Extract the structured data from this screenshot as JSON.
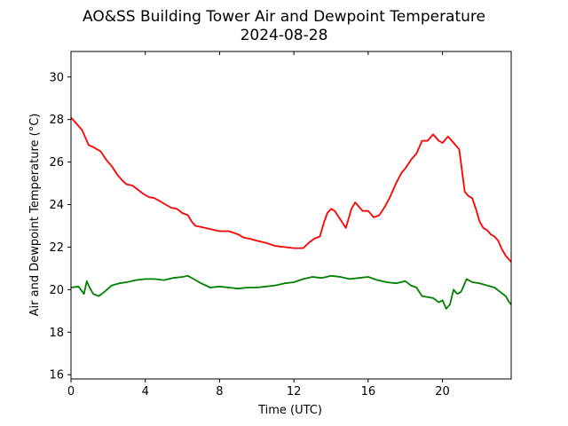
{
  "chart_data": {
    "type": "line",
    "title": "AO&SS Building Tower Air and Dewpoint Temperature",
    "subtitle": "2024-08-28",
    "xlabel": "Time (UTC)",
    "ylabel": "Air and Dewpoint Temperature (°C)",
    "xlim": [
      0,
      23.7
    ],
    "ylim": [
      15.8,
      31.2
    ],
    "xticks": [
      0,
      4,
      8,
      12,
      16,
      20
    ],
    "xtick_labels": [
      "0",
      "4",
      "8",
      "12",
      "16",
      "20"
    ],
    "yticks": [
      16,
      18,
      20,
      22,
      24,
      26,
      28,
      30
    ],
    "ytick_labels": [
      "16",
      "18",
      "20",
      "22",
      "24",
      "26",
      "28",
      "30"
    ],
    "grid": false,
    "legend": "none",
    "series": [
      {
        "color": "#ff0000",
        "x": [
          0,
          0.3,
          0.6,
          0.8,
          0.95,
          1.2,
          1.6,
          1.9,
          2.2,
          2.5,
          2.8,
          3.0,
          3.3,
          3.6,
          3.9,
          4.2,
          4.5,
          4.8,
          5.1,
          5.4,
          5.7,
          6.0,
          6.3,
          6.5,
          6.7,
          7.0,
          7.5,
          8.0,
          8.5,
          9.0,
          9.3,
          9.6,
          10.0,
          10.5,
          11.0,
          11.5,
          12.0,
          12.5,
          12.8,
          13.1,
          13.4,
          13.6,
          13.8,
          14.0,
          14.2,
          14.5,
          14.8,
          15.1,
          15.3,
          15.5,
          15.7,
          16.0,
          16.3,
          16.6,
          16.9,
          17.2,
          17.5,
          17.8,
          18.0,
          18.3,
          18.6,
          18.9,
          19.2,
          19.5,
          19.8,
          20.0,
          20.3,
          20.6,
          20.9,
          21.2,
          21.4,
          21.6,
          21.8,
          22.0,
          22.2,
          22.4,
          22.6,
          22.8,
          23.0,
          23.2,
          23.4,
          23.6,
          23.7
        ],
        "y": [
          28.1,
          27.8,
          27.5,
          27.1,
          26.8,
          26.7,
          26.5,
          26.1,
          25.8,
          25.4,
          25.1,
          24.95,
          24.9,
          24.7,
          24.5,
          24.35,
          24.3,
          24.15,
          24.0,
          23.85,
          23.8,
          23.6,
          23.5,
          23.2,
          23.0,
          22.95,
          22.85,
          22.75,
          22.75,
          22.6,
          22.45,
          22.4,
          22.3,
          22.2,
          22.05,
          22.0,
          21.95,
          21.95,
          22.2,
          22.4,
          22.5,
          23.1,
          23.6,
          23.8,
          23.7,
          23.3,
          22.9,
          23.8,
          24.1,
          23.9,
          23.7,
          23.7,
          23.4,
          23.5,
          23.9,
          24.4,
          25.0,
          25.5,
          25.7,
          26.1,
          26.4,
          27.0,
          27.0,
          27.3,
          27.0,
          26.9,
          27.2,
          26.9,
          26.6,
          24.6,
          24.4,
          24.3,
          23.8,
          23.2,
          22.9,
          22.8,
          22.6,
          22.5,
          22.3,
          21.9,
          21.6,
          21.4,
          21.3
        ]
      },
      {
        "color": "#008000",
        "x": [
          0,
          0.4,
          0.7,
          0.85,
          1.0,
          1.2,
          1.5,
          1.8,
          2.2,
          2.6,
          3.0,
          3.5,
          4.0,
          4.5,
          5.0,
          5.5,
          6.0,
          6.3,
          6.6,
          7.0,
          7.5,
          8.0,
          8.5,
          9.0,
          9.5,
          10.0,
          10.5,
          11.0,
          11.5,
          12.0,
          12.5,
          13.0,
          13.5,
          14.0,
          14.5,
          15.0,
          15.5,
          16.0,
          16.5,
          17.0,
          17.5,
          18.0,
          18.3,
          18.6,
          18.9,
          19.2,
          19.5,
          19.8,
          20.0,
          20.2,
          20.4,
          20.6,
          20.8,
          21.0,
          21.3,
          21.6,
          22.0,
          22.4,
          22.8,
          23.1,
          23.4,
          23.6,
          23.7
        ],
        "y": [
          20.1,
          20.15,
          19.8,
          20.4,
          20.1,
          19.8,
          19.7,
          19.9,
          20.2,
          20.3,
          20.35,
          20.45,
          20.5,
          20.5,
          20.45,
          20.55,
          20.6,
          20.65,
          20.5,
          20.3,
          20.1,
          20.15,
          20.1,
          20.05,
          20.1,
          20.1,
          20.15,
          20.2,
          20.3,
          20.35,
          20.5,
          20.6,
          20.55,
          20.65,
          20.6,
          20.5,
          20.55,
          20.6,
          20.45,
          20.35,
          20.3,
          20.4,
          20.2,
          20.1,
          19.7,
          19.65,
          19.6,
          19.4,
          19.5,
          19.1,
          19.3,
          20.0,
          19.8,
          19.9,
          20.5,
          20.35,
          20.3,
          20.2,
          20.1,
          19.9,
          19.7,
          19.4,
          19.3
        ]
      }
    ]
  }
}
